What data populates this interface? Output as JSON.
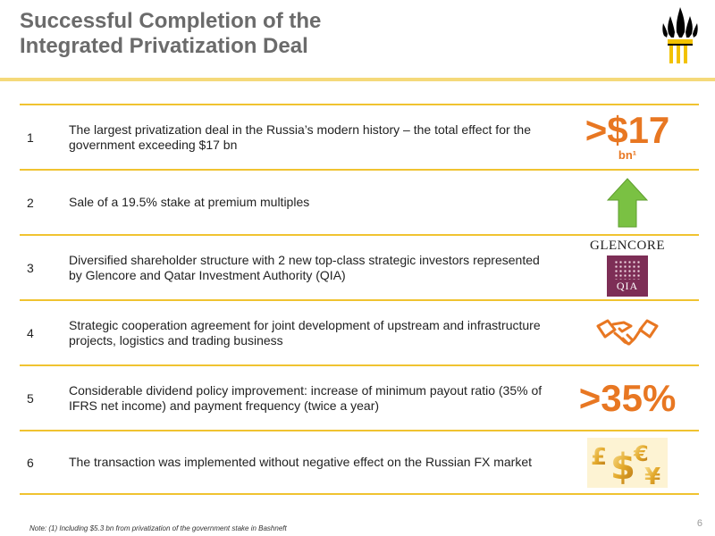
{
  "title": {
    "line1": "Successful Completion of the",
    "line2": "Integrated Privatization Deal"
  },
  "rows": [
    {
      "num": "1",
      "text_bold": "The largest privatization deal in the Russia’s modern history –",
      "text": " the total effect for the government exceeding $17 bn",
      "metric": ">$17",
      "metric_sub": "bn¹"
    },
    {
      "num": "2",
      "text": "Sale of a 19.5% stake at premium multiples",
      "icon": "green-up-arrow-icon"
    },
    {
      "num": "3",
      "text": "Diversified shareholder structure with 2 new top-class strategic investors represented by Glencore and Qatar Investment Authority (QIA)",
      "glencore": "GLENCORE",
      "qia": "QIA"
    },
    {
      "num": "4",
      "text": "Strategic cooperation agreement for joint development of upstream and infrastructure projects, logistics and trading business",
      "icon": "handshake-icon"
    },
    {
      "num": "5",
      "text": "Considerable dividend policy improvement: increase of minimum payout ratio (35% of IFRS net income) and payment frequency (twice a year)",
      "metric": ">35%"
    },
    {
      "num": "6",
      "text": "The transaction was implemented without negative effect on the Russian FX market",
      "icon": "currency-symbols-icon"
    }
  ],
  "footnote": "Note: (1) Including $5.3 bn from privatization of the government stake in Bashneft",
  "page_number": "6",
  "colors": {
    "accent": "#f0c330",
    "orange": "#e87722",
    "title": "#6b6b6b",
    "green": "#7ac143",
    "qia": "#7d2e56"
  }
}
